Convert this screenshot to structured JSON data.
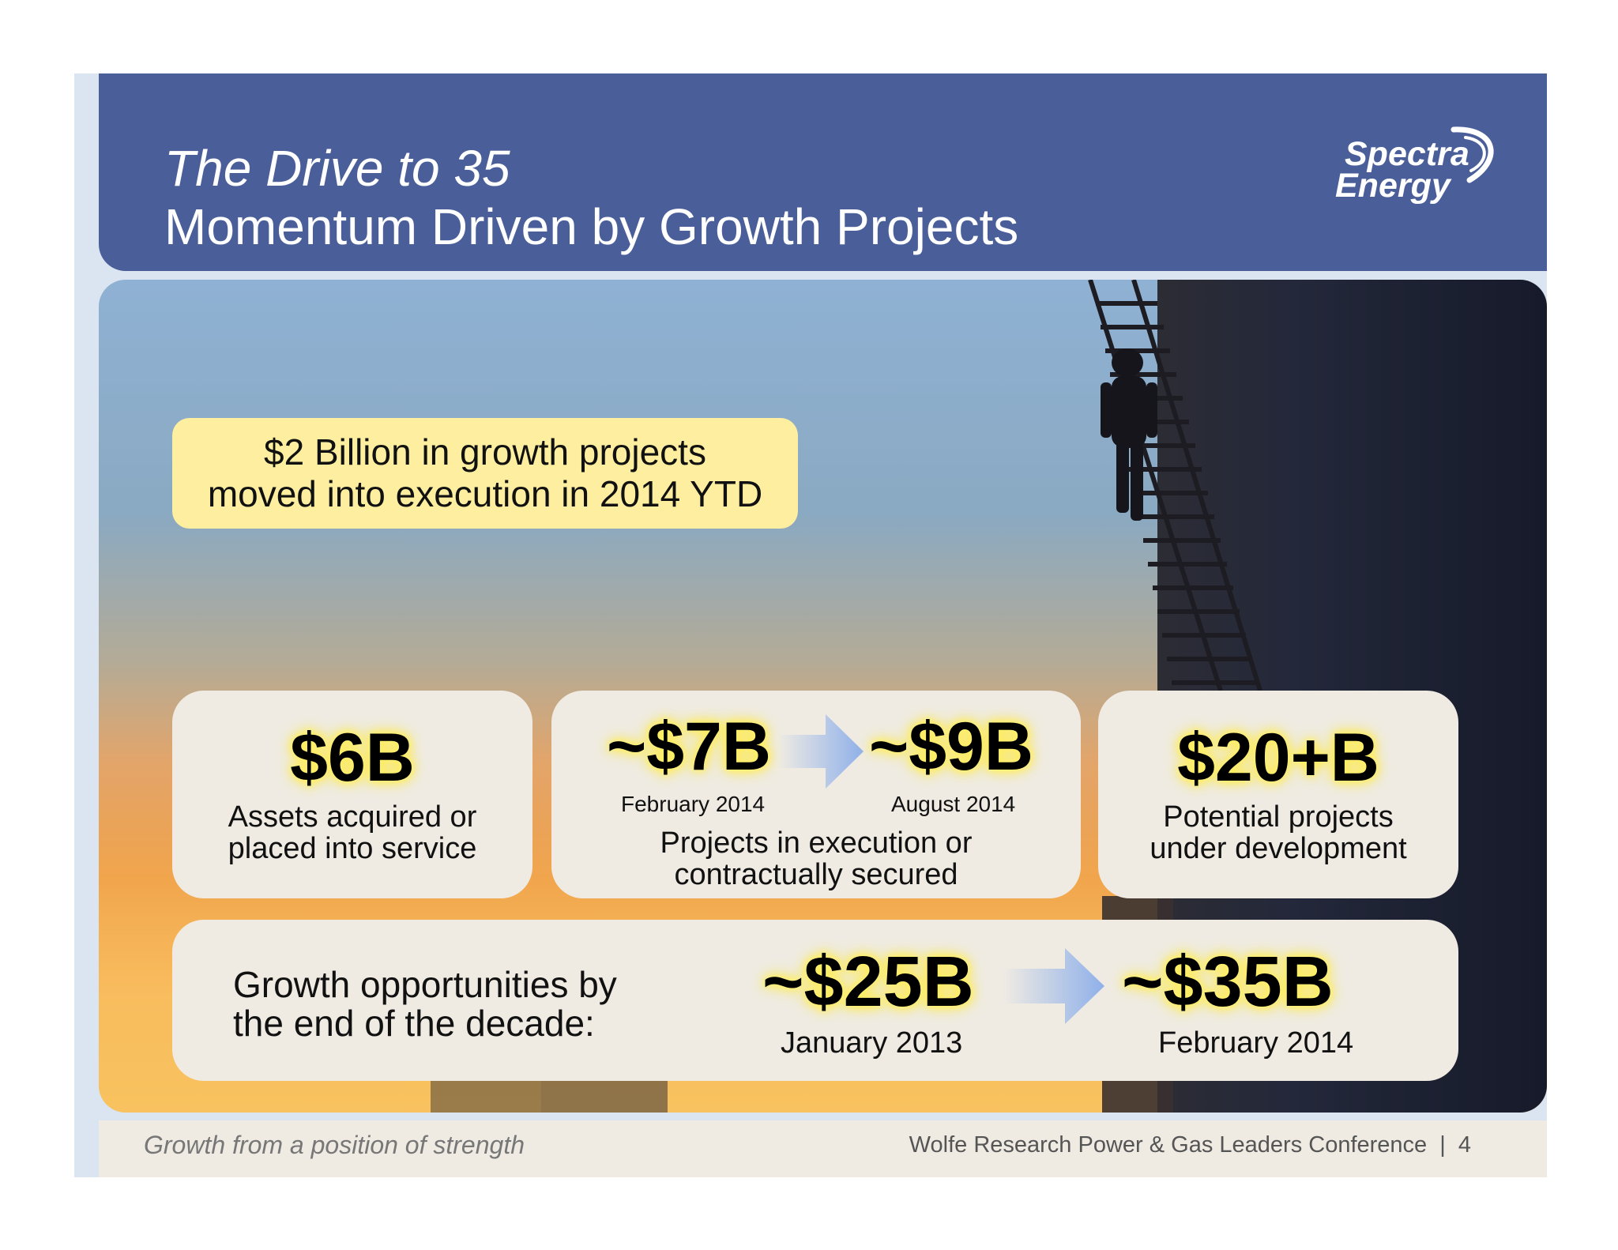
{
  "header": {
    "title_line1": "The Drive to 35",
    "title_line2": "Momentum Driven by Growth Projects",
    "logo_line1": "Spectra",
    "logo_line2": "Energy"
  },
  "callout": {
    "line1": "$2 Billion in growth projects",
    "line2": "moved into execution in 2014 YTD"
  },
  "cards": {
    "assets": {
      "value": "$6B",
      "line1": "Assets acquired or",
      "line2": "placed into service"
    },
    "execution": {
      "from_value": "~$7B",
      "from_date": "February 2014",
      "to_value": "~$9B",
      "to_date": "August 2014",
      "line1": "Projects in execution or",
      "line2": "contractually secured"
    },
    "potential": {
      "value": "$20+B",
      "line1": "Potential projects",
      "line2": "under development"
    }
  },
  "growth": {
    "label_line1": "Growth opportunities by",
    "label_line2": "the end of the decade:",
    "from_value": "~$25B",
    "from_date": "January 2013",
    "to_value": "~$35B",
    "to_date": "February 2014"
  },
  "footer": {
    "tagline": "Growth from a position of strength",
    "conference": "Wolfe Research Power & Gas Leaders Conference",
    "separator": "|",
    "page": "4"
  },
  "colors": {
    "header_bg": "#4a5e9a",
    "callout_bg": "#fdeea0",
    "card_bg": "#efebe3",
    "highlight_glow": "#ffe94a",
    "arrow": "#8fb0ea"
  }
}
